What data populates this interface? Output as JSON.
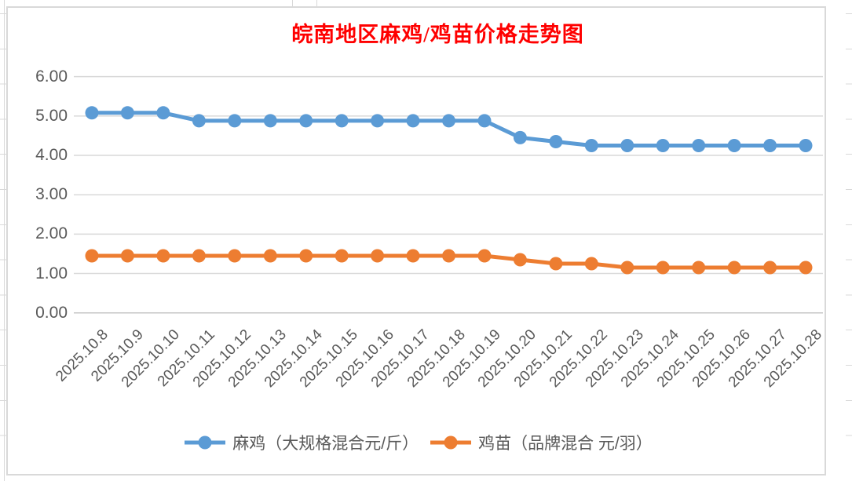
{
  "chart_data": {
    "type": "line",
    "title": "皖南地区麻鸡/鸡苗价格走势图",
    "title_color": "#FF0000",
    "categories": [
      "2025.10.8",
      "2025.10.9",
      "2025.10.10",
      "2025.10.11",
      "2025.10.12",
      "2025.10.13",
      "2025.10.14",
      "2025.10.15",
      "2025.10.16",
      "2025.10.17",
      "2025.10.18",
      "2025.10.19",
      "2025.10.20",
      "2025.10.21",
      "2025.10.22",
      "2025.10.23",
      "2025.10.24",
      "2025.10.25",
      "2025.10.26",
      "2025.10.27",
      "2025.10.28"
    ],
    "series": [
      {
        "name": "麻鸡（大规格混合元/斤）",
        "color": "#5B9BD5",
        "values": [
          5.08,
          5.08,
          5.08,
          4.88,
          4.88,
          4.88,
          4.88,
          4.88,
          4.88,
          4.88,
          4.88,
          4.88,
          4.45,
          4.35,
          4.25,
          4.25,
          4.25,
          4.25,
          4.25,
          4.25,
          4.25
        ]
      },
      {
        "name": "鸡苗（品牌混合 元/羽）",
        "color": "#ED7D31",
        "values": [
          1.45,
          1.45,
          1.45,
          1.45,
          1.45,
          1.45,
          1.45,
          1.45,
          1.45,
          1.45,
          1.45,
          1.45,
          1.35,
          1.25,
          1.25,
          1.15,
          1.15,
          1.15,
          1.15,
          1.15,
          1.15
        ]
      }
    ],
    "ylim": [
      0,
      6
    ],
    "y_ticks": [
      "6.00",
      "5.00",
      "4.00",
      "3.00",
      "2.00",
      "1.00",
      "0.00"
    ],
    "grid": true,
    "legend_position": "bottom",
    "axis_text_color": "#595959",
    "gridline_color": "#D9D9D9"
  }
}
